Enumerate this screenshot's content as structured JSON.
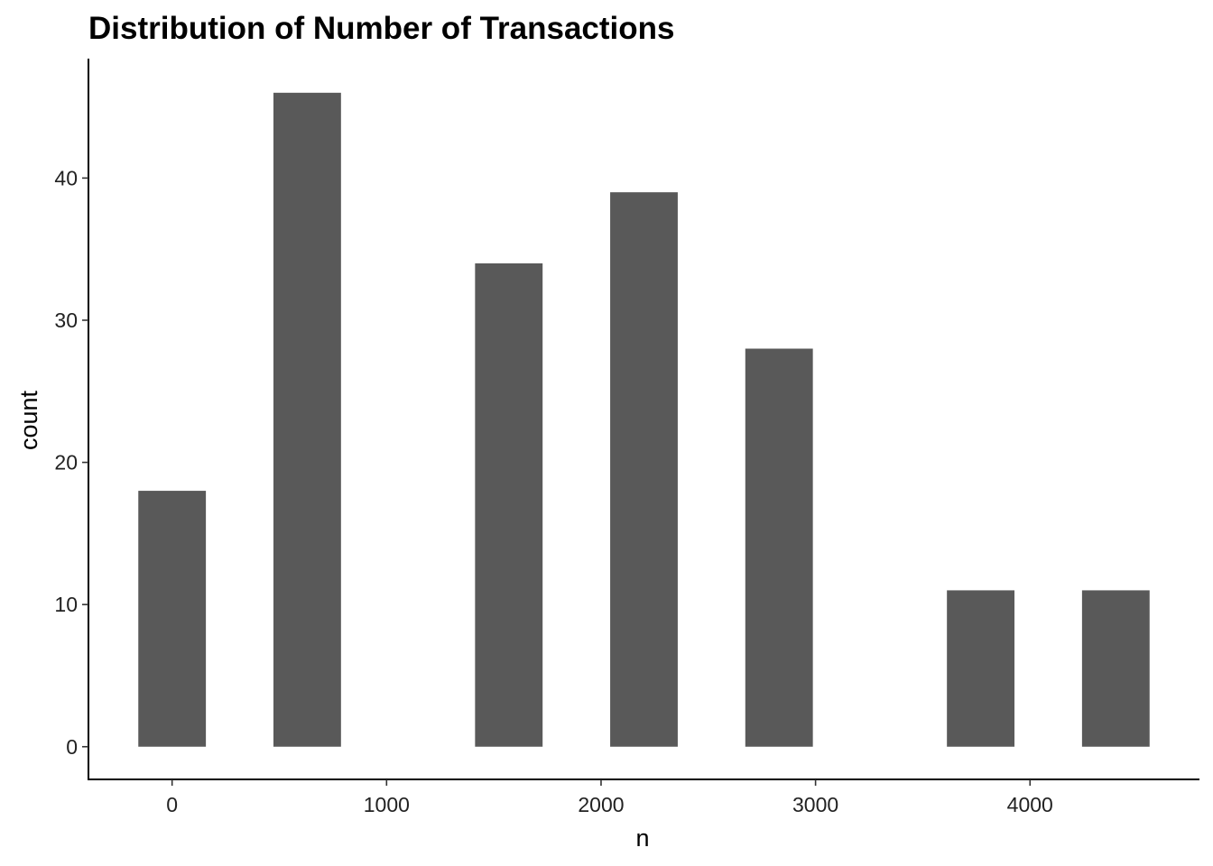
{
  "chart_data": {
    "type": "bar",
    "title": "Distribution of Number of Transactions",
    "xlabel": "n",
    "ylabel": "count",
    "x": [
      0,
      630,
      1570,
      2200,
      2830,
      3770,
      4400
    ],
    "values": [
      18,
      46,
      34,
      39,
      28,
      11,
      11
    ],
    "bar_width": 315,
    "xlim": [
      -390,
      4790
    ],
    "ylim": [
      -2.3,
      48.4
    ],
    "xticks": [
      0,
      1000,
      2000,
      3000,
      4000
    ],
    "xtick_labels": [
      "0",
      "1000",
      "2000",
      "3000",
      "4000"
    ],
    "yticks": [
      0,
      10,
      20,
      30,
      40
    ],
    "ytick_labels": [
      "0",
      "10",
      "20",
      "30",
      "40"
    ],
    "grid": false,
    "bar_color": "#595959"
  }
}
